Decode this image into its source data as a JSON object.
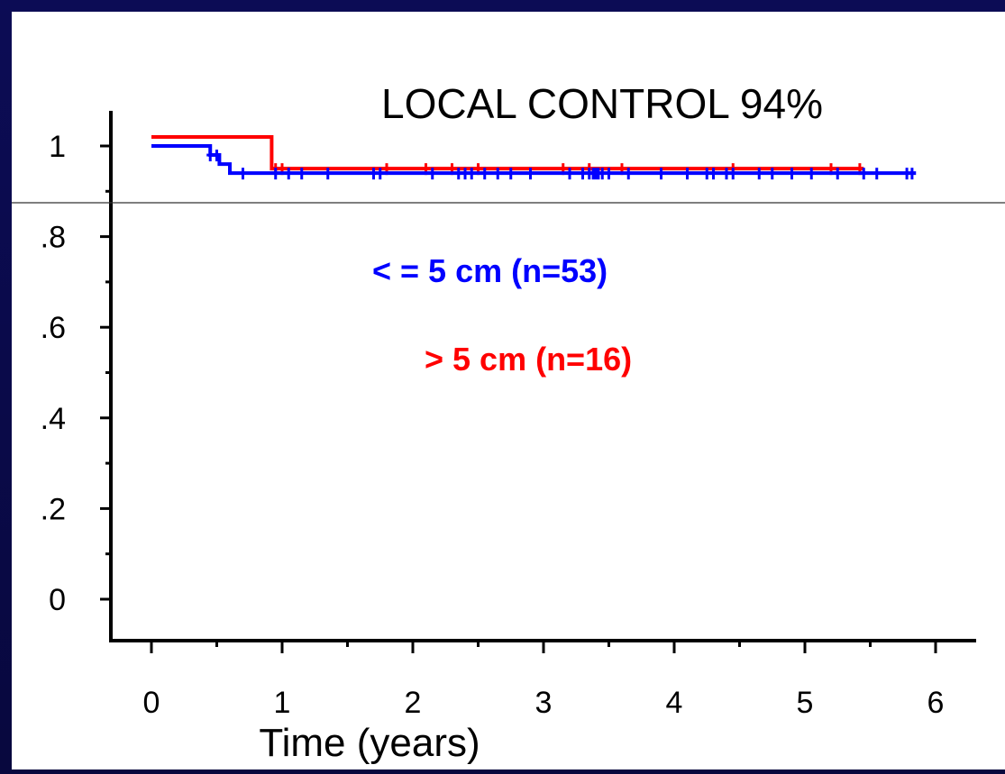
{
  "chart_data": {
    "type": "line",
    "title": "LOCAL CONTROL 94%",
    "xlabel": "Time (years)",
    "ylabel": "",
    "xlim": [
      0,
      6
    ],
    "ylim": [
      0,
      1
    ],
    "x_ticks": [
      0,
      1,
      2,
      3,
      4,
      5,
      6
    ],
    "x_tick_labels": [
      "0",
      "1",
      "2",
      "3",
      "4",
      "5",
      "6"
    ],
    "y_ticks": [
      0,
      0.2,
      0.4,
      0.6,
      0.8,
      1
    ],
    "y_tick_labels": [
      "0",
      ".2",
      ".4",
      ".6",
      ".8",
      "1"
    ],
    "grid": false,
    "series": [
      {
        "name": "< = 5 cm (n=53)",
        "color": "#0000ff",
        "steps": [
          [
            0,
            1.0
          ],
          [
            0.45,
            0.98
          ],
          [
            0.52,
            0.96
          ],
          [
            0.6,
            0.94
          ],
          [
            5.85,
            0.94
          ]
        ],
        "censored": [
          0.45,
          0.5,
          0.7,
          0.95,
          1.05,
          1.15,
          1.35,
          1.7,
          1.75,
          2.15,
          2.35,
          2.4,
          2.45,
          2.55,
          2.65,
          2.75,
          2.9,
          3.2,
          3.3,
          3.35,
          3.38,
          3.4,
          3.42,
          3.45,
          3.5,
          3.65,
          3.9,
          4.1,
          4.25,
          4.3,
          4.4,
          4.45,
          4.65,
          4.75,
          4.9,
          5.05,
          5.25,
          5.45,
          5.55,
          5.78,
          5.82
        ]
      },
      {
        "name": "> 5 cm (n=16)",
        "color": "#ff0000",
        "steps": [
          [
            0,
            1.02
          ],
          [
            0.92,
            1.02
          ],
          [
            0.92,
            0.95
          ],
          [
            5.45,
            0.95
          ]
        ],
        "censored": [
          0.95,
          1.0,
          1.8,
          2.1,
          2.3,
          2.5,
          3.15,
          3.35,
          3.6,
          4.45,
          5.2,
          5.42
        ]
      }
    ],
    "annotations": [
      "< = 5 cm (n=53)",
      "> 5 cm (n=16)"
    ]
  }
}
